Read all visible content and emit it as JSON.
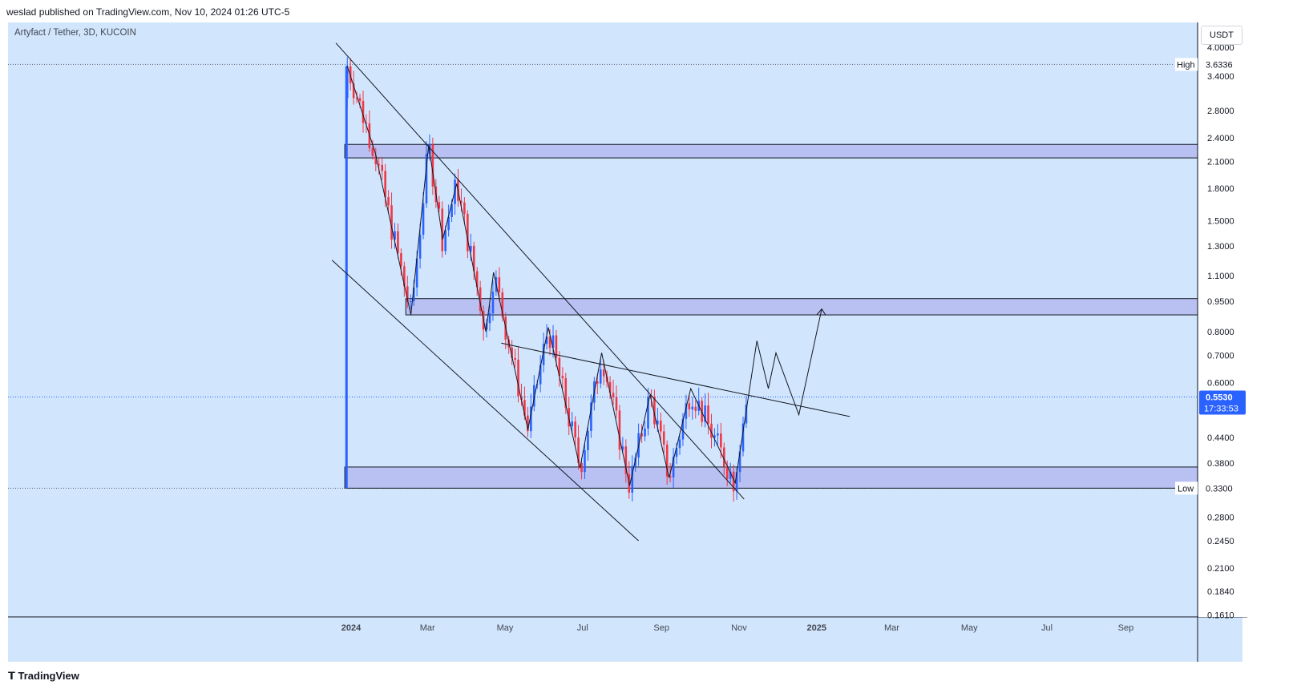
{
  "header": {
    "published": "weslad published on TradingView.com, Nov 10, 2024 01:26 UTC-5"
  },
  "symbol_info": "Artyfact / Tether, 3D, KUCOIN",
  "currency_button": "USDT",
  "footer": {
    "brand": "TradingView"
  },
  "colors": {
    "background": "#d1e6fd",
    "up": "#2962ff",
    "down": "#f23645",
    "zone": "#b9c0f2",
    "price_tag": "#2962ff"
  },
  "chart_data": {
    "type": "candlestick",
    "y_scale": "log",
    "ylim": [
      0.161,
      4.0
    ],
    "y_ticks": [
      {
        "v": 4.0,
        "label": "4.0000"
      },
      {
        "v": 3.4,
        "label": "3.4000"
      },
      {
        "v": 2.8,
        "label": "2.8000"
      },
      {
        "v": 2.4,
        "label": "2.4000"
      },
      {
        "v": 2.1,
        "label": "2.1000"
      },
      {
        "v": 1.8,
        "label": "1.8000"
      },
      {
        "v": 1.5,
        "label": "1.5000"
      },
      {
        "v": 1.3,
        "label": "1.3000"
      },
      {
        "v": 1.1,
        "label": "1.1000"
      },
      {
        "v": 0.95,
        "label": "0.9500"
      },
      {
        "v": 0.8,
        "label": "0.8000"
      },
      {
        "v": 0.7,
        "label": "0.7000"
      },
      {
        "v": 0.6,
        "label": "0.6000"
      },
      {
        "v": 0.44,
        "label": "0.4400"
      },
      {
        "v": 0.38,
        "label": "0.3800"
      },
      {
        "v": 0.28,
        "label": "0.2800"
      },
      {
        "v": 0.245,
        "label": "0.2450"
      },
      {
        "v": 0.21,
        "label": "0.2100"
      },
      {
        "v": 0.184,
        "label": "0.1840"
      },
      {
        "v": 0.161,
        "label": "0.1610"
      }
    ],
    "x_ticks": [
      {
        "label": "2024",
        "date": "2024-01-01",
        "bold": true
      },
      {
        "label": "Mar",
        "date": "2024-03-01"
      },
      {
        "label": "May",
        "date": "2024-05-01"
      },
      {
        "label": "Jul",
        "date": "2024-07-01"
      },
      {
        "label": "Sep",
        "date": "2024-09-01"
      },
      {
        "label": "Nov",
        "date": "2024-11-01"
      },
      {
        "label": "2025",
        "date": "2025-01-01",
        "bold": true
      },
      {
        "label": "Mar",
        "date": "2025-03-01"
      },
      {
        "label": "May",
        "date": "2025-05-01"
      },
      {
        "label": "Jul",
        "date": "2025-07-01"
      },
      {
        "label": "Sep",
        "date": "2025-09-01"
      }
    ],
    "high": {
      "label": "High",
      "value": 3.6336,
      "value_label": "3.6336"
    },
    "low": {
      "label": "Low",
      "value": 0.33,
      "value_label": "0.3300"
    },
    "last_price": {
      "value": 0.553,
      "label": "0.5530",
      "countdown": "17:33:53"
    },
    "zones": [
      {
        "date_start": "2023-12-27",
        "date_end": "2025-11-20",
        "price_top": 2.31,
        "price_bottom": 2.14
      },
      {
        "date_start": "2024-02-13",
        "date_end": "2025-11-20",
        "price_top": 0.965,
        "price_bottom": 0.88
      },
      {
        "date_start": "2023-12-27",
        "date_end": "2025-11-20",
        "price_top": 0.372,
        "price_bottom": 0.33
      }
    ],
    "lines": [
      {
        "points": [
          [
            "2023-12-20",
            4.1
          ],
          [
            "2024-11-05",
            0.31
          ]
        ]
      },
      {
        "points": [
          [
            "2023-12-17",
            1.2
          ],
          [
            "2024-08-14",
            0.245
          ]
        ]
      },
      {
        "points": [
          [
            "2024-04-28",
            0.75
          ],
          [
            "2025-01-27",
            0.495
          ]
        ]
      },
      {
        "points": [
          [
            "2023-12-29",
            3.6
          ],
          [
            "2024-01-20",
            2.2
          ],
          [
            "2024-02-17",
            0.88
          ],
          [
            "2024-03-02",
            2.3
          ],
          [
            "2024-03-13",
            1.35
          ],
          [
            "2024-03-24",
            1.85
          ],
          [
            "2024-04-16",
            0.8
          ],
          [
            "2024-04-22",
            1.12
          ],
          [
            "2024-05-19",
            0.46
          ],
          [
            "2024-06-04",
            0.82
          ],
          [
            "2024-06-29",
            0.37
          ],
          [
            "2024-07-16",
            0.71
          ],
          [
            "2024-08-07",
            0.335
          ],
          [
            "2024-08-23",
            0.56
          ],
          [
            "2024-09-07",
            0.35
          ],
          [
            "2024-09-24",
            0.58
          ],
          [
            "2024-10-29",
            0.34
          ],
          [
            "2024-11-15",
            0.76
          ],
          [
            "2024-11-24",
            0.58
          ],
          [
            "2024-11-30",
            0.71
          ],
          [
            "2024-12-18",
            0.5
          ],
          [
            "2025-01-05",
            0.91
          ]
        ]
      }
    ],
    "arrow_end": [
      "2025-01-05",
      0.91
    ]
  }
}
